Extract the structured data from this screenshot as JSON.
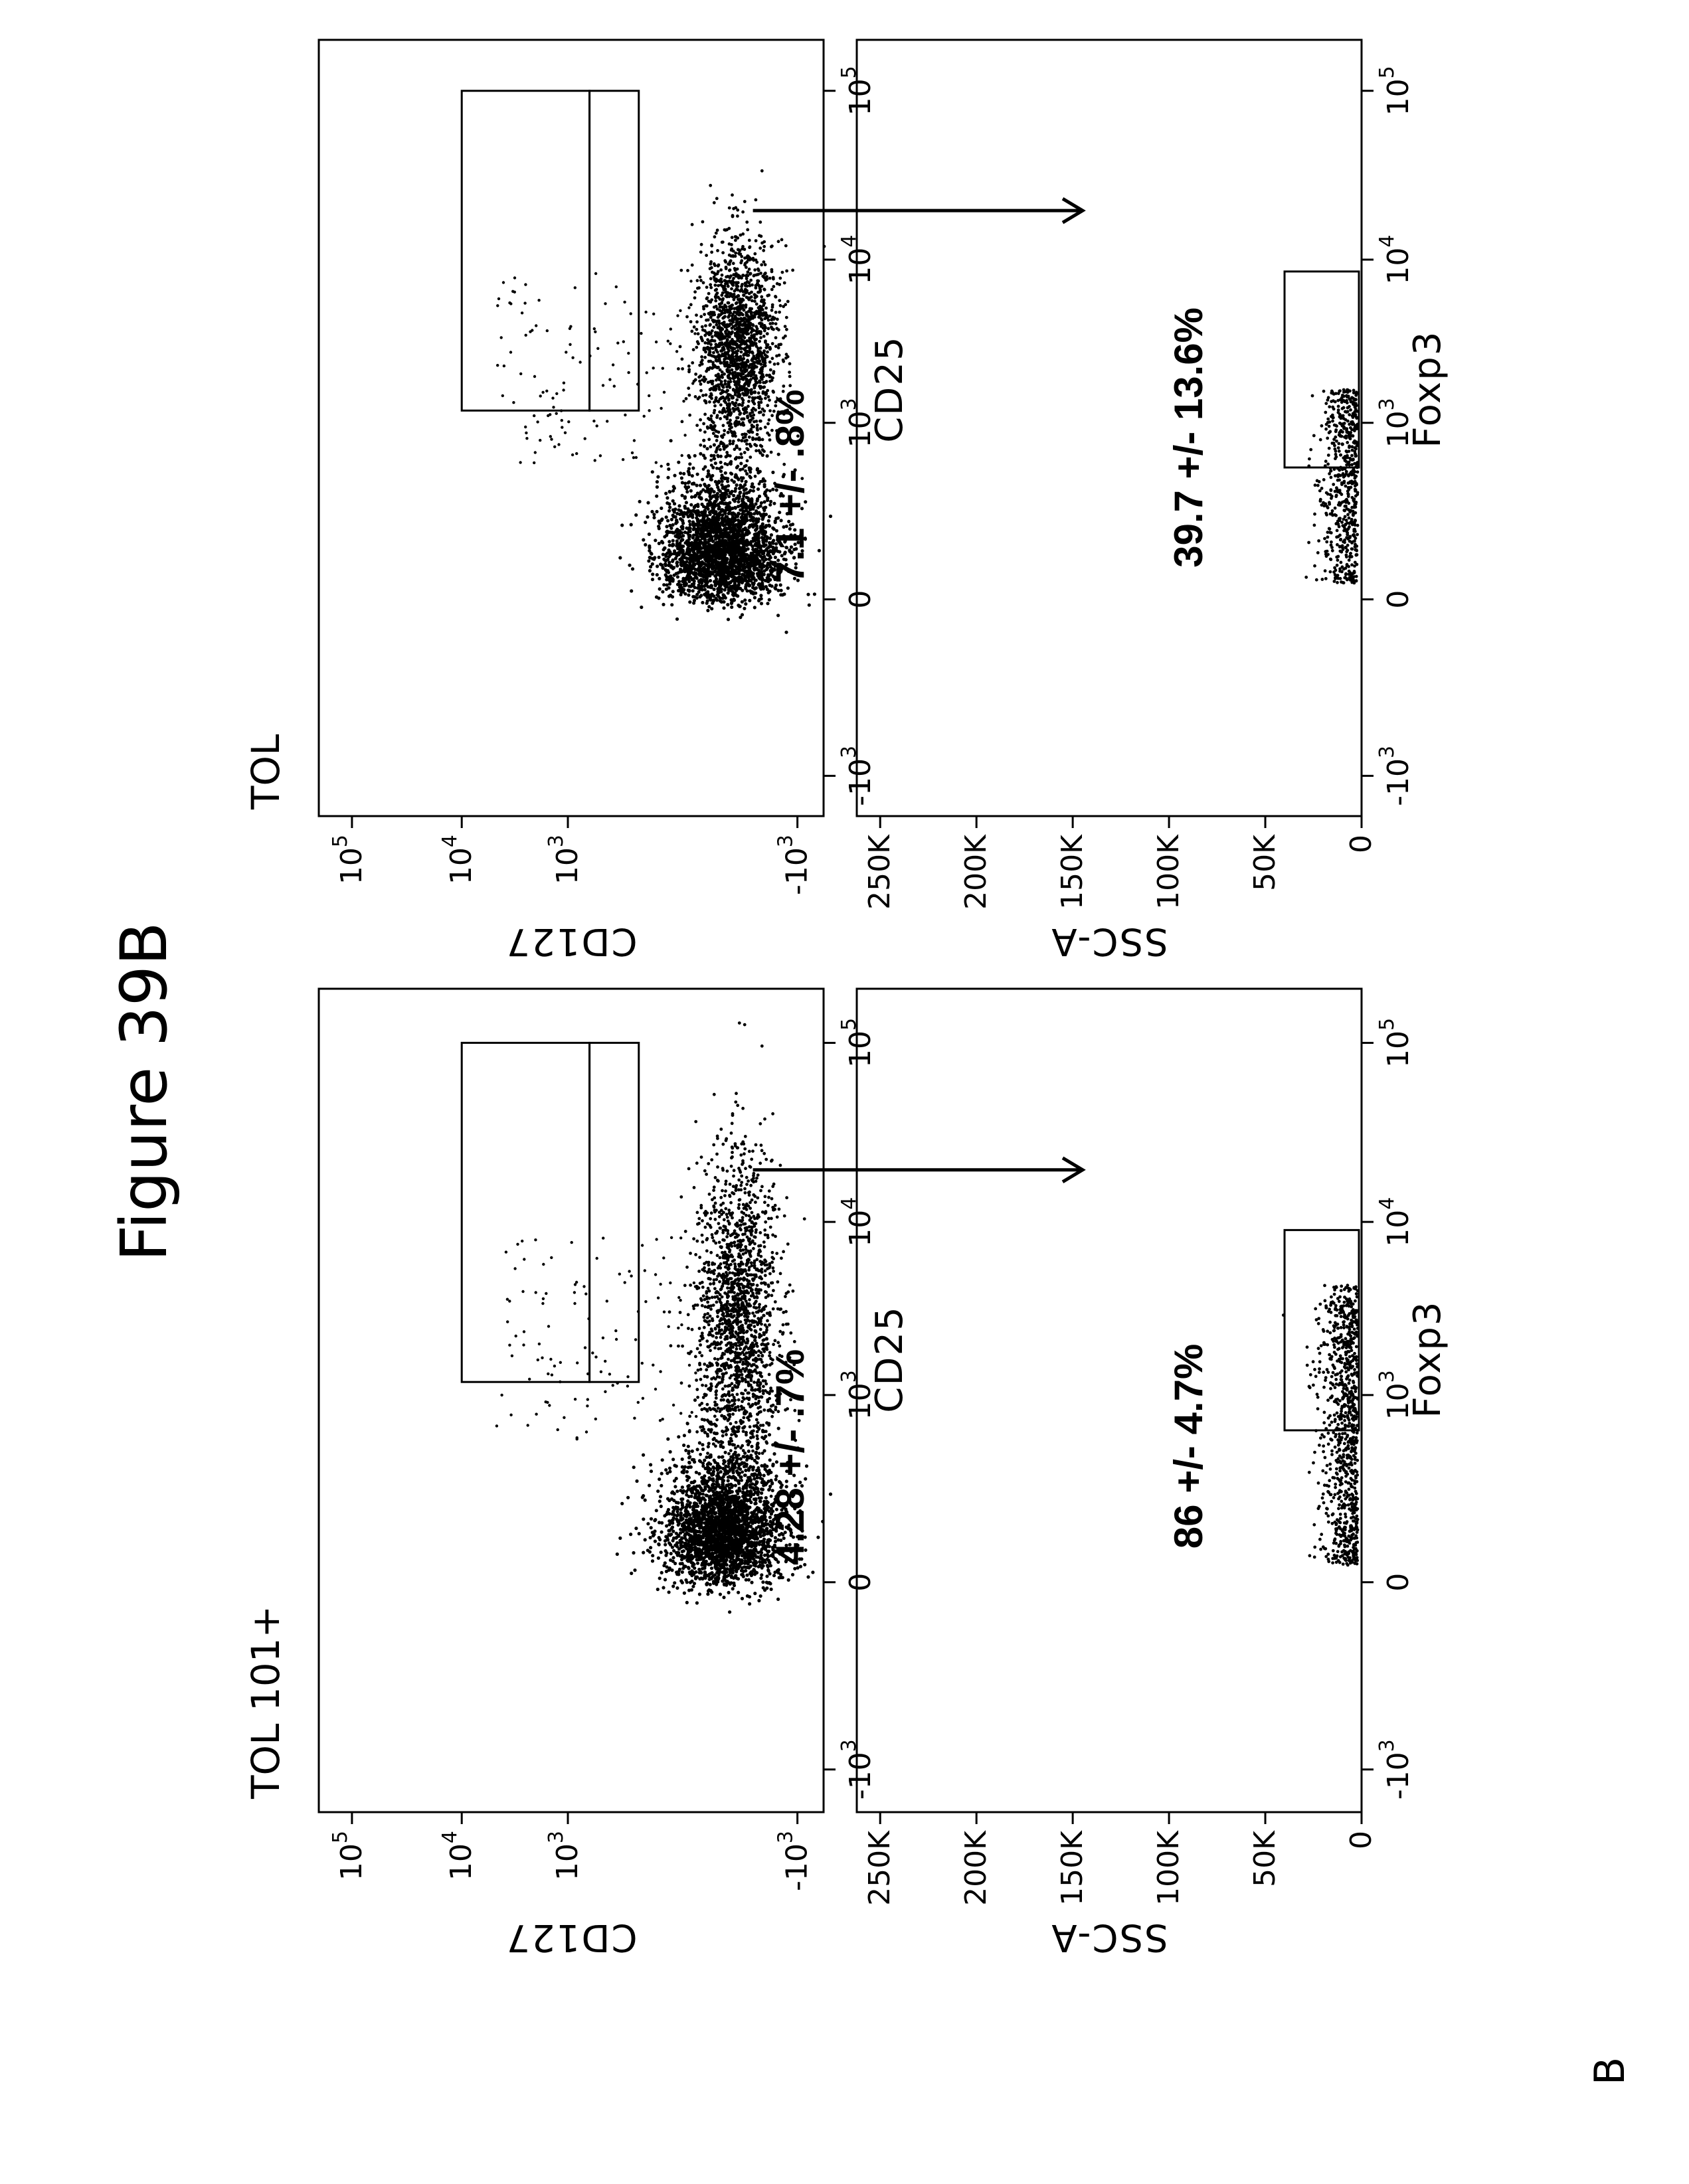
{
  "figure": {
    "title": "Figure 39B",
    "section_label": "B",
    "panels": [
      {
        "name": "TOL 101+"
      },
      {
        "name": "TOL"
      }
    ]
  },
  "chart_data": [
    {
      "type": "scatter",
      "panel": "TOL 101+",
      "xlabel": "CD25",
      "ylabel": "CD127",
      "x_scale": "biexponential",
      "y_scale": "biexponential",
      "x_ticks": [
        "-10^3",
        "0",
        "10^3",
        "10^4",
        "10^5"
      ],
      "y_ticks": [
        "-10^3",
        "10^3",
        "10^4",
        "10^5"
      ],
      "gates": [
        {
          "name": "upper",
          "x_range": [
            1200,
            100000
          ],
          "y_range": [
            600,
            10000
          ]
        },
        {
          "name": "lower",
          "x_range": [
            1200,
            100000
          ],
          "y_range": [
            150,
            600
          ]
        }
      ],
      "annotation": "4.28 +/- .7%"
    },
    {
      "type": "scatter",
      "panel": "TOL 101+",
      "xlabel": "Foxp3",
      "ylabel": "SSC-A",
      "x_scale": "biexponential",
      "x_ticks": [
        "-10^3",
        "0",
        "10^3",
        "10^4",
        "10^5"
      ],
      "y_ticks": [
        "0",
        "50K",
        "100K",
        "150K",
        "200K",
        "250K"
      ],
      "ylim": [
        0,
        262144
      ],
      "gate": {
        "x_range": [
          600,
          9000
        ],
        "y_range": [
          0,
          40000
        ]
      },
      "annotation": "86 +/- 4.7%"
    },
    {
      "type": "scatter",
      "panel": "TOL",
      "xlabel": "CD25",
      "ylabel": "CD127",
      "x_scale": "biexponential",
      "y_scale": "biexponential",
      "x_ticks": [
        "-10^3",
        "0",
        "10^3",
        "10^4",
        "10^5"
      ],
      "y_ticks": [
        "-10^3",
        "10^3",
        "10^4",
        "10^5"
      ],
      "gates": [
        {
          "name": "upper",
          "x_range": [
            1200,
            100000
          ],
          "y_range": [
            600,
            10000
          ]
        },
        {
          "name": "lower",
          "x_range": [
            1200,
            100000
          ],
          "y_range": [
            150,
            600
          ]
        }
      ],
      "annotation": "7.1 +/- .8%"
    },
    {
      "type": "scatter",
      "panel": "TOL",
      "xlabel": "Foxp3",
      "ylabel": "SSC-A",
      "x_scale": "biexponential",
      "x_ticks": [
        "-10^3",
        "0",
        "10^3",
        "10^4",
        "10^5"
      ],
      "y_ticks": [
        "0",
        "50K",
        "100K",
        "150K",
        "200K",
        "250K"
      ],
      "ylim": [
        0,
        262144
      ],
      "gate": {
        "x_range": [
          500,
          8500
        ],
        "y_range": [
          0,
          40000
        ]
      },
      "annotation": "39.7 +/- 13.6%"
    }
  ]
}
